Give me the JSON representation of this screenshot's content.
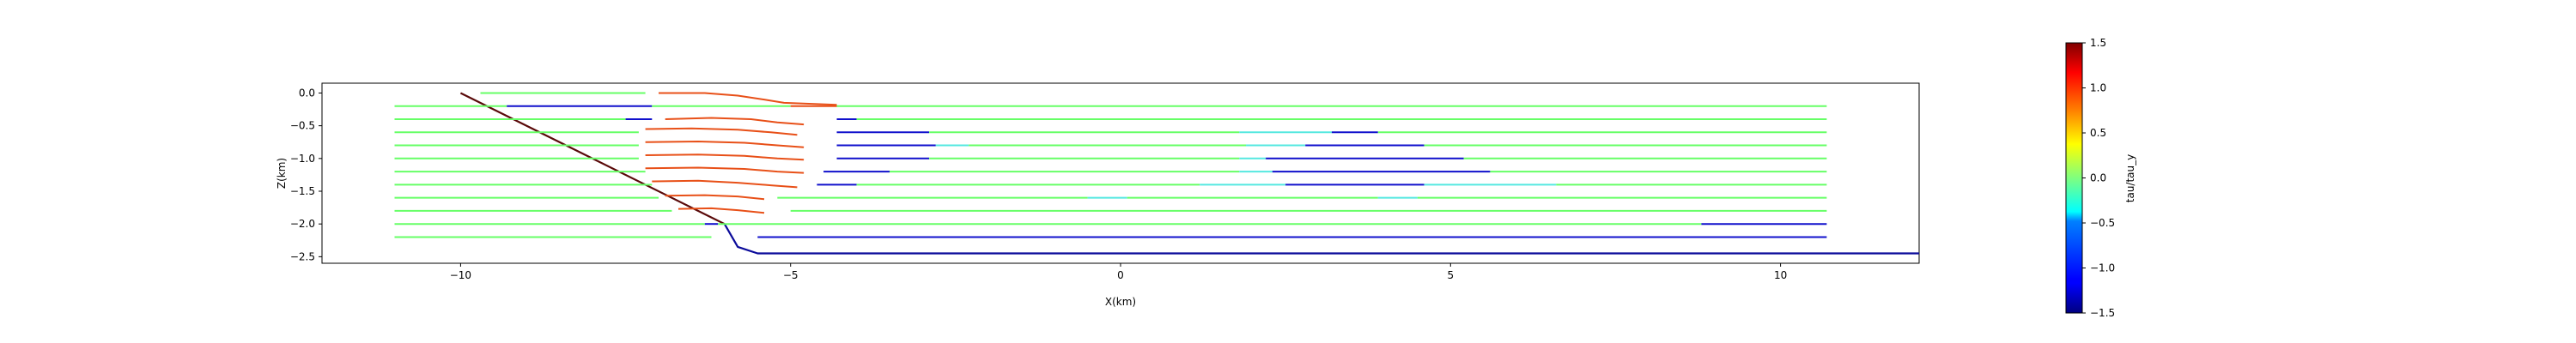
{
  "chart_data": {
    "type": "line",
    "title": "",
    "xlabel": "X(km)",
    "ylabel": "Z(km)",
    "xlim": [
      -12.1,
      12.1
    ],
    "ylim": [
      -2.6,
      0.15
    ],
    "xticks": [
      -10,
      -5,
      0,
      5,
      10
    ],
    "xtick_labels": [
      "−10",
      "−5",
      "0",
      "5",
      "10"
    ],
    "yticks": [
      0.0,
      -0.5,
      -1.0,
      -1.5,
      -2.0,
      -2.5
    ],
    "ytick_labels": [
      "0.0",
      "−0.5",
      "−1.0",
      "−1.5",
      "−2.0",
      "−2.5"
    ],
    "grid": false,
    "colorbar": {
      "label": "tau/tau_y",
      "min": -1.5,
      "max": 1.5,
      "ticks": [
        1.5,
        1.0,
        0.5,
        0.0,
        -0.5,
        -1.0,
        -1.5
      ],
      "tick_labels": [
        "1.5",
        "1.0",
        "0.5",
        "0.0",
        "−0.5",
        "−1.0",
        "−1.5"
      ],
      "colormap": "jet"
    },
    "series": [
      {
        "role": "boundary",
        "color": "#5a0a0a",
        "x": [
          -10.0,
          -6.0
        ],
        "y": [
          0.0,
          -2.0
        ]
      },
      {
        "role": "boundary",
        "color": "#0a0a9a",
        "x": [
          -6.0,
          -5.8,
          -5.5,
          12.1
        ],
        "y": [
          -2.0,
          -2.35,
          -2.45,
          -2.45
        ]
      },
      {
        "role": "flowline",
        "color": "#66ff66",
        "x": [
          -9.7,
          -7.2
        ],
        "y": [
          0.0,
          0.0
        ]
      },
      {
        "role": "flowline",
        "color": "#e85018",
        "x": [
          -7.0,
          -6.3,
          -5.8,
          -5.4,
          -5.1,
          -4.3
        ],
        "y": [
          0.0,
          0.0,
          -0.04,
          -0.1,
          -0.15,
          -0.18
        ]
      },
      {
        "role": "flowline",
        "color": "#66ff66",
        "x": [
          -11.0,
          -9.3
        ],
        "y": [
          -0.2,
          -0.2
        ]
      },
      {
        "role": "flowline",
        "color": "#1010cc",
        "x": [
          -9.3,
          -7.1
        ],
        "y": [
          -0.2,
          -0.2
        ]
      },
      {
        "role": "flowline",
        "color": "#66ff66",
        "x": [
          -7.1,
          -5.0
        ],
        "y": [
          -0.2,
          -0.2
        ]
      },
      {
        "role": "flowline",
        "color": "#e85018",
        "x": [
          -5.0,
          -4.3
        ],
        "y": [
          -0.2,
          -0.2
        ]
      },
      {
        "role": "flowline",
        "color": "#66ff66",
        "x": [
          -4.3,
          10.7
        ],
        "y": [
          -0.2,
          -0.2
        ]
      },
      {
        "role": "flowline",
        "color": "#66ff66",
        "x": [
          -11.0,
          -7.5
        ],
        "y": [
          -0.4,
          -0.4
        ]
      },
      {
        "role": "flowline",
        "color": "#1010cc",
        "x": [
          -7.5,
          -7.1
        ],
        "y": [
          -0.4,
          -0.4
        ]
      },
      {
        "role": "flowline",
        "color": "#e85018",
        "x": [
          -6.9,
          -6.2,
          -5.6,
          -5.2,
          -4.8
        ],
        "y": [
          -0.4,
          -0.38,
          -0.4,
          -0.45,
          -0.48
        ]
      },
      {
        "role": "flowline",
        "color": "#1010cc",
        "x": [
          -4.3,
          -4.0
        ],
        "y": [
          -0.4,
          -0.4
        ]
      },
      {
        "role": "flowline",
        "color": "#66ff66",
        "x": [
          -4.0,
          10.7
        ],
        "y": [
          -0.4,
          -0.4
        ]
      },
      {
        "role": "flowline",
        "color": "#66ff66",
        "x": [
          -11.0,
          -7.3
        ],
        "y": [
          -0.6,
          -0.6
        ]
      },
      {
        "role": "flowline",
        "color": "#e85018",
        "x": [
          -7.2,
          -6.5,
          -5.8,
          -5.3,
          -4.9
        ],
        "y": [
          -0.55,
          -0.54,
          -0.56,
          -0.6,
          -0.64
        ]
      },
      {
        "role": "flowline",
        "color": "#1010cc",
        "x": [
          -4.3,
          -2.9
        ],
        "y": [
          -0.6,
          -0.6
        ]
      },
      {
        "role": "flowline",
        "color": "#66ff66",
        "x": [
          -2.9,
          1.8
        ],
        "y": [
          -0.6,
          -0.6
        ]
      },
      {
        "role": "flowline",
        "color": "#55e8e0",
        "x": [
          1.8,
          3.2
        ],
        "y": [
          -0.6,
          -0.6
        ]
      },
      {
        "role": "flowline",
        "color": "#1010cc",
        "x": [
          3.2,
          3.9
        ],
        "y": [
          -0.6,
          -0.6
        ]
      },
      {
        "role": "flowline",
        "color": "#66ff66",
        "x": [
          3.9,
          10.7
        ],
        "y": [
          -0.6,
          -0.6
        ]
      },
      {
        "role": "flowline",
        "color": "#66ff66",
        "x": [
          -11.0,
          -7.3
        ],
        "y": [
          -0.8,
          -0.8
        ]
      },
      {
        "role": "flowline",
        "color": "#e85018",
        "x": [
          -7.2,
          -6.4,
          -5.7,
          -5.2,
          -4.8
        ],
        "y": [
          -0.75,
          -0.74,
          -0.76,
          -0.8,
          -0.83
        ]
      },
      {
        "role": "flowline",
        "color": "#1010cc",
        "x": [
          -4.3,
          -2.8
        ],
        "y": [
          -0.8,
          -0.8
        ]
      },
      {
        "role": "flowline",
        "color": "#55e8e0",
        "x": [
          -2.8,
          -2.3
        ],
        "y": [
          -0.8,
          -0.8
        ]
      },
      {
        "role": "flowline",
        "color": "#66ff66",
        "x": [
          -2.3,
          1.9
        ],
        "y": [
          -0.8,
          -0.8
        ]
      },
      {
        "role": "flowline",
        "color": "#55e8e0",
        "x": [
          1.9,
          2.8
        ],
        "y": [
          -0.8,
          -0.8
        ]
      },
      {
        "role": "flowline",
        "color": "#1010cc",
        "x": [
          2.8,
          4.6
        ],
        "y": [
          -0.8,
          -0.8
        ]
      },
      {
        "role": "flowline",
        "color": "#66ff66",
        "x": [
          4.6,
          10.7
        ],
        "y": [
          -0.8,
          -0.8
        ]
      },
      {
        "role": "flowline",
        "color": "#66ff66",
        "x": [
          -11.0,
          -7.3
        ],
        "y": [
          -1.0,
          -1.0
        ]
      },
      {
        "role": "flowline",
        "color": "#e85018",
        "x": [
          -7.2,
          -6.4,
          -5.7,
          -5.2,
          -4.8
        ],
        "y": [
          -0.95,
          -0.94,
          -0.96,
          -1.0,
          -1.02
        ]
      },
      {
        "role": "flowline",
        "color": "#1010cc",
        "x": [
          -4.3,
          -2.9
        ],
        "y": [
          -1.0,
          -1.0
        ]
      },
      {
        "role": "flowline",
        "color": "#66ff66",
        "x": [
          -2.9,
          1.8
        ],
        "y": [
          -1.0,
          -1.0
        ]
      },
      {
        "role": "flowline",
        "color": "#55e8e0",
        "x": [
          1.8,
          2.2
        ],
        "y": [
          -1.0,
          -1.0
        ]
      },
      {
        "role": "flowline",
        "color": "#1010cc",
        "x": [
          2.2,
          5.2
        ],
        "y": [
          -1.0,
          -1.0
        ]
      },
      {
        "role": "flowline",
        "color": "#66ff66",
        "x": [
          5.2,
          10.7
        ],
        "y": [
          -1.0,
          -1.0
        ]
      },
      {
        "role": "flowline",
        "color": "#66ff66",
        "x": [
          -11.0,
          -7.2
        ],
        "y": [
          -1.2,
          -1.2
        ]
      },
      {
        "role": "flowline",
        "color": "#e85018",
        "x": [
          -7.2,
          -6.4,
          -5.7,
          -5.2,
          -4.8
        ],
        "y": [
          -1.15,
          -1.14,
          -1.16,
          -1.2,
          -1.22
        ]
      },
      {
        "role": "flowline",
        "color": "#1010cc",
        "x": [
          -4.5,
          -3.5
        ],
        "y": [
          -1.2,
          -1.2
        ]
      },
      {
        "role": "flowline",
        "color": "#66ff66",
        "x": [
          -3.5,
          1.8
        ],
        "y": [
          -1.2,
          -1.2
        ]
      },
      {
        "role": "flowline",
        "color": "#55e8e0",
        "x": [
          1.8,
          2.3
        ],
        "y": [
          -1.2,
          -1.2
        ]
      },
      {
        "role": "flowline",
        "color": "#1010cc",
        "x": [
          2.3,
          5.6
        ],
        "y": [
          -1.2,
          -1.2
        ]
      },
      {
        "role": "flowline",
        "color": "#66ff66",
        "x": [
          5.6,
          10.7
        ],
        "y": [
          -1.2,
          -1.2
        ]
      },
      {
        "role": "flowline",
        "color": "#66ff66",
        "x": [
          -11.0,
          -7.1
        ],
        "y": [
          -1.4,
          -1.4
        ]
      },
      {
        "role": "flowline",
        "color": "#e85018",
        "x": [
          -7.1,
          -6.4,
          -5.8,
          -5.3,
          -4.9
        ],
        "y": [
          -1.35,
          -1.34,
          -1.37,
          -1.41,
          -1.44
        ]
      },
      {
        "role": "flowline",
        "color": "#1010cc",
        "x": [
          -4.6,
          -4.0
        ],
        "y": [
          -1.4,
          -1.4
        ]
      },
      {
        "role": "flowline",
        "color": "#66ff66",
        "x": [
          -4.0,
          1.2
        ],
        "y": [
          -1.4,
          -1.4
        ]
      },
      {
        "role": "flowline",
        "color": "#55e8e0",
        "x": [
          1.2,
          2.5
        ],
        "y": [
          -1.4,
          -1.4
        ]
      },
      {
        "role": "flowline",
        "color": "#1010cc",
        "x": [
          2.5,
          4.6
        ],
        "y": [
          -1.4,
          -1.4
        ]
      },
      {
        "role": "flowline",
        "color": "#55e8e0",
        "x": [
          4.6,
          6.6
        ],
        "y": [
          -1.4,
          -1.4
        ]
      },
      {
        "role": "flowline",
        "color": "#66ff66",
        "x": [
          6.6,
          10.7
        ],
        "y": [
          -1.4,
          -1.4
        ]
      },
      {
        "role": "flowline",
        "color": "#66ff66",
        "x": [
          -11.0,
          -7.0
        ],
        "y": [
          -1.6,
          -1.6
        ]
      },
      {
        "role": "flowline",
        "color": "#e85018",
        "x": [
          -6.9,
          -6.3,
          -5.8,
          -5.4
        ],
        "y": [
          -1.57,
          -1.56,
          -1.58,
          -1.62
        ]
      },
      {
        "role": "flowline",
        "color": "#66ff66",
        "x": [
          -5.2,
          -0.5
        ],
        "y": [
          -1.6,
          -1.6
        ]
      },
      {
        "role": "flowline",
        "color": "#55e8e0",
        "x": [
          -0.5,
          0.1
        ],
        "y": [
          -1.6,
          -1.6
        ]
      },
      {
        "role": "flowline",
        "color": "#66ff66",
        "x": [
          0.1,
          3.9
        ],
        "y": [
          -1.6,
          -1.6
        ]
      },
      {
        "role": "flowline",
        "color": "#55e8e0",
        "x": [
          3.9,
          4.5
        ],
        "y": [
          -1.6,
          -1.6
        ]
      },
      {
        "role": "flowline",
        "color": "#66ff66",
        "x": [
          4.5,
          10.7
        ],
        "y": [
          -1.6,
          -1.6
        ]
      },
      {
        "role": "flowline",
        "color": "#66ff66",
        "x": [
          -11.0,
          -6.8
        ],
        "y": [
          -1.8,
          -1.8
        ]
      },
      {
        "role": "flowline",
        "color": "#e85018",
        "x": [
          -6.7,
          -6.2,
          -5.8,
          -5.4
        ],
        "y": [
          -1.77,
          -1.76,
          -1.79,
          -1.83
        ]
      },
      {
        "role": "flowline",
        "color": "#66ff66",
        "x": [
          -5.0,
          10.7
        ],
        "y": [
          -1.8,
          -1.8
        ]
      },
      {
        "role": "flowline",
        "color": "#66ff66",
        "x": [
          -11.0,
          -6.3
        ],
        "y": [
          -2.0,
          -2.0
        ]
      },
      {
        "role": "flowline",
        "color": "#1010cc",
        "x": [
          -6.3,
          -6.1
        ],
        "y": [
          -2.0,
          -2.0
        ]
      },
      {
        "role": "flowline",
        "color": "#66ff66",
        "x": [
          -6.1,
          8.8
        ],
        "y": [
          -2.0,
          -2.0
        ]
      },
      {
        "role": "flowline",
        "color": "#1010cc",
        "x": [
          8.8,
          10.7
        ],
        "y": [
          -2.0,
          -2.0
        ]
      },
      {
        "role": "flowline",
        "color": "#66ff66",
        "x": [
          -11.0,
          -6.2
        ],
        "y": [
          -2.2,
          -2.2
        ]
      },
      {
        "role": "flowline",
        "color": "#1010cc",
        "x": [
          -5.5,
          10.7
        ],
        "y": [
          -2.2,
          -2.2
        ]
      }
    ]
  }
}
